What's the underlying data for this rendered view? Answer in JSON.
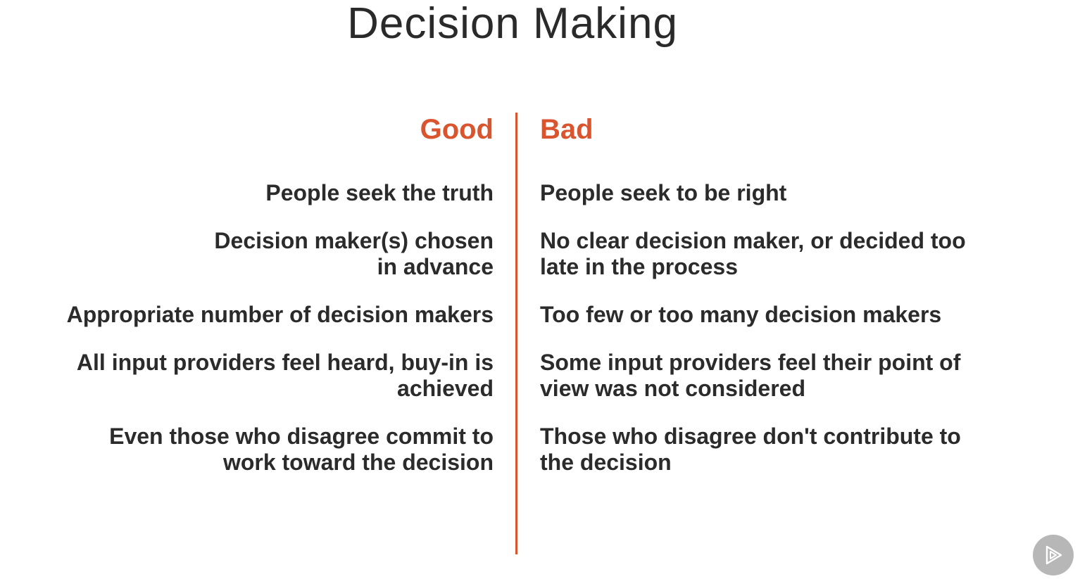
{
  "slide": {
    "title": "Decision Making"
  },
  "columns": {
    "good": {
      "header": "Good",
      "items": [
        [
          "People seek the truth"
        ],
        [
          "Decision maker(s) chosen",
          "in advance"
        ],
        [
          "Appropriate number of decision makers"
        ],
        [
          "All input providers feel heard, buy-in is",
          "achieved"
        ],
        [
          "Even those who disagree commit to",
          "work toward the decision"
        ]
      ]
    },
    "bad": {
      "header": "Bad",
      "items": [
        [
          "People seek to be right"
        ],
        [
          "No clear decision maker, or decided too",
          "late in the process"
        ],
        [
          "Too few or too many decision makers"
        ],
        [
          "Some input providers feel their point of",
          "view was not considered"
        ],
        [
          "Those who disagree don't contribute to",
          "the decision"
        ]
      ]
    }
  },
  "colors": {
    "accent": "#d9552f",
    "text": "#2b2b2b",
    "badge": "#b7b7b7"
  },
  "icons": {
    "badge": "play-logo-icon"
  }
}
